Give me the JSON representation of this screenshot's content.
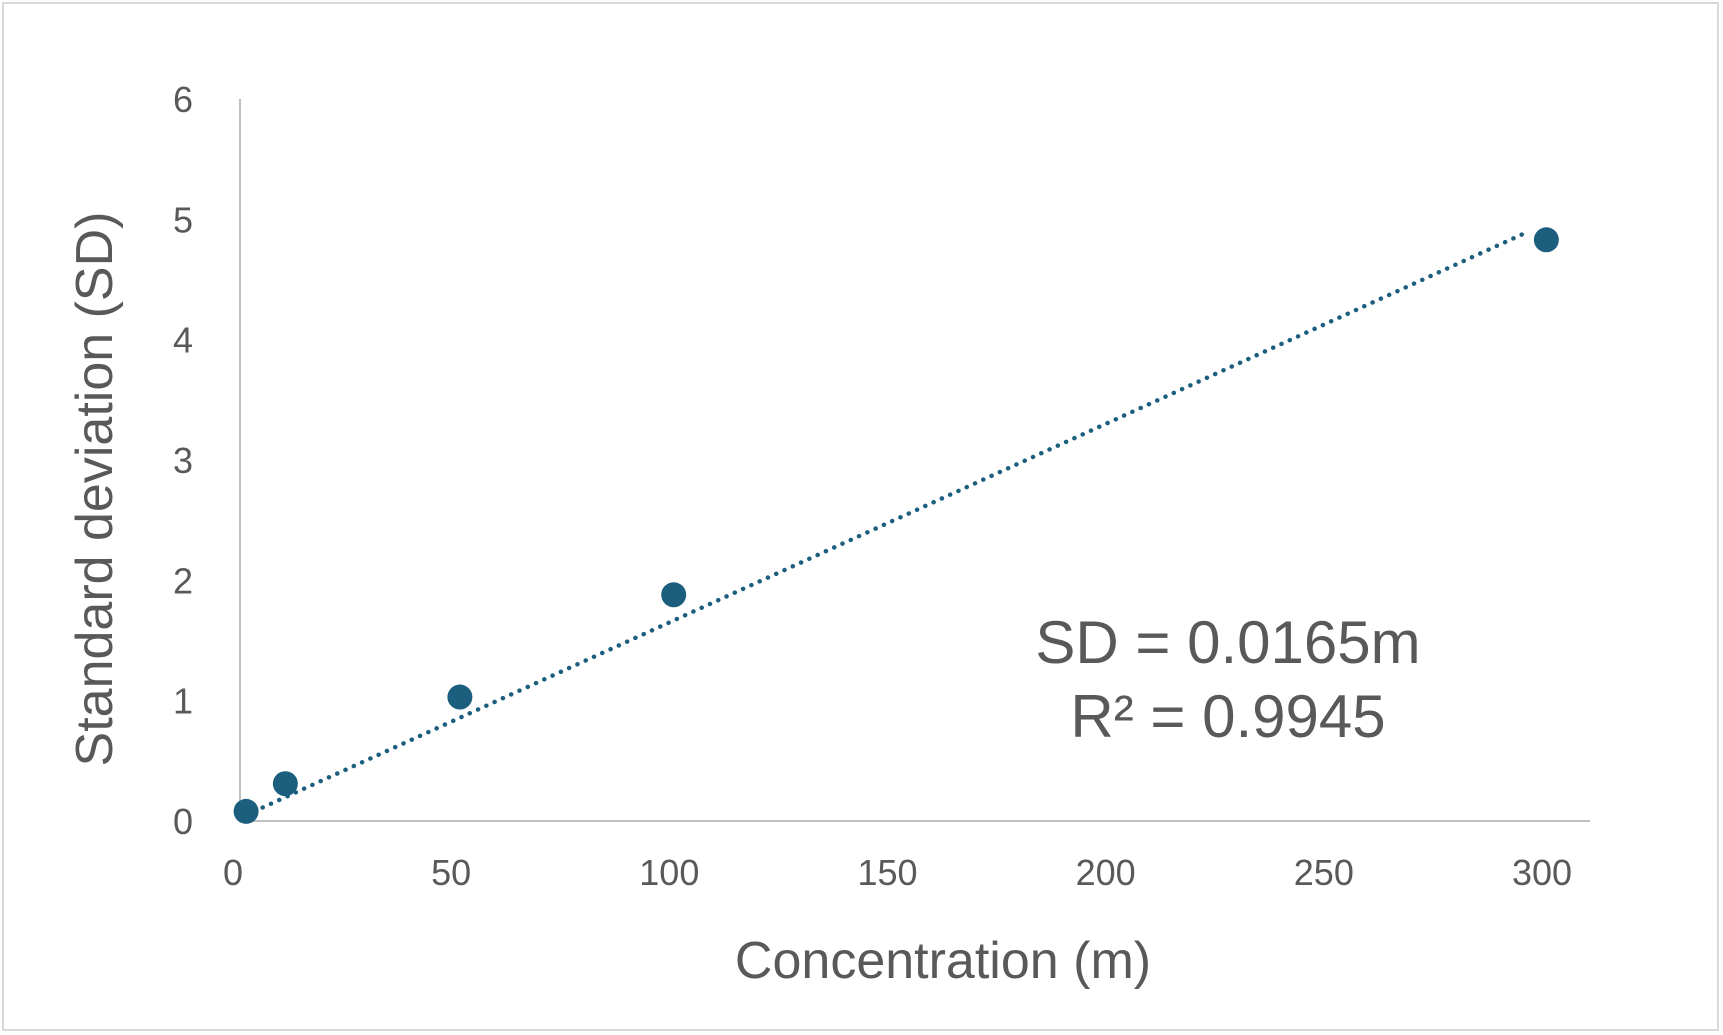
{
  "chart_data": {
    "type": "scatter",
    "xlabel": "Concentration (m)",
    "ylabel": "Standard deviation (SD)",
    "xlim": [
      0,
      310
    ],
    "ylim": [
      0,
      6
    ],
    "xticks": [
      0,
      50,
      100,
      150,
      200,
      250,
      300
    ],
    "yticks": [
      0,
      1,
      2,
      3,
      4,
      5,
      6
    ],
    "grid": false,
    "legend": "none",
    "series": [
      {
        "x": [
          3,
          12,
          52,
          101,
          301
        ],
        "y": [
          0.08,
          0.31,
          1.03,
          1.88,
          4.83
        ],
        "color": "#1b5e7e"
      }
    ],
    "trendline": {
      "style": "dotted",
      "color": "#1b5e7e",
      "slope": 0.0165,
      "intercept": 0,
      "x_range": [
        3,
        297
      ]
    },
    "annotations": [
      "SD = 0.0165m",
      "R² = 0.9945"
    ]
  }
}
